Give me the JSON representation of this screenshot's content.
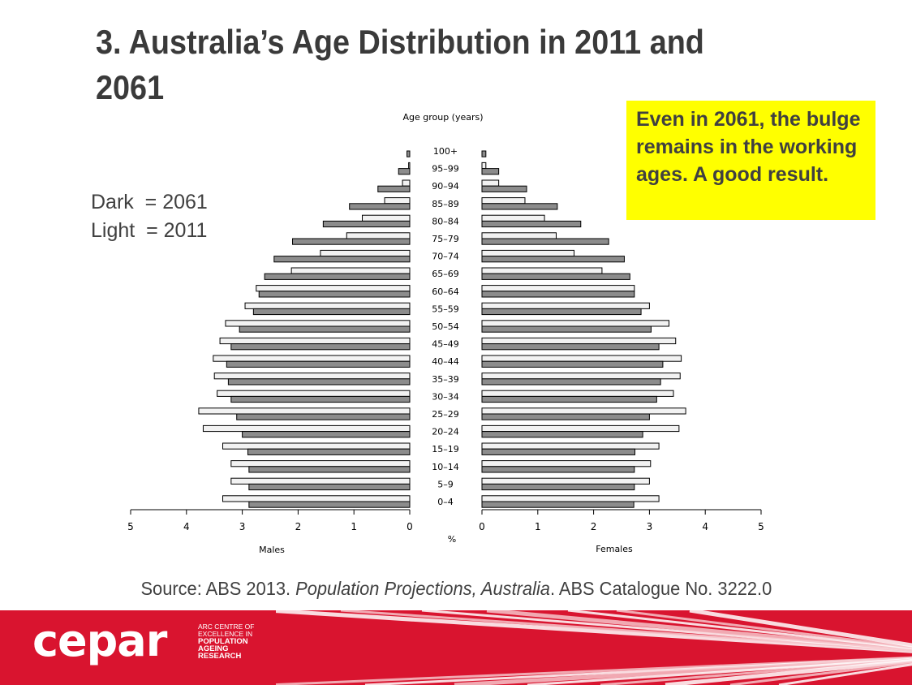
{
  "slide": {
    "title": "3. Australia’s Age Distribution in 2011 and 2061",
    "legend_dark": "Dark  = 2061",
    "legend_light": "Light  = 2011",
    "callout": "Even in 2061, the bulge remains in the working ages. A good result.",
    "source_prefix": "Source: ABS 2013. ",
    "source_title": "Population Projections, Australia",
    "source_suffix": ". ABS Catalogue No. 3222.0"
  },
  "footer": {
    "logo": "cepar",
    "lines": [
      "ARC CENTRE OF",
      "EXCELLENCE IN",
      "POPULATION",
      "AGEING",
      "RESEARCH"
    ],
    "bg_color": "#d9142f"
  },
  "chart_data": {
    "type": "bar",
    "subtype": "population-pyramid",
    "title": "Age group (years)",
    "x_unit_label": "%",
    "left_label": "Males",
    "right_label": "Females",
    "xlim": [
      0,
      5
    ],
    "x_ticks": [
      "5",
      "4",
      "3",
      "2",
      "1",
      "0",
      "0",
      "1",
      "2",
      "3",
      "4",
      "5"
    ],
    "categories": [
      "0–4",
      "5–9",
      "10–14",
      "15–19",
      "20–24",
      "25–29",
      "30–34",
      "35–39",
      "40–44",
      "45–49",
      "50–54",
      "55–59",
      "60–64",
      "65–69",
      "70–74",
      "75–79",
      "80–84",
      "85–89",
      "90–94",
      "95–99",
      "100+"
    ],
    "colors": {
      "2011": "#f2f2f2",
      "2061": "#8c8c8c"
    },
    "series": [
      {
        "name": "Males 2011",
        "side": "left",
        "year": "2011",
        "values": [
          3.35,
          3.2,
          3.2,
          3.35,
          3.7,
          3.78,
          3.45,
          3.5,
          3.52,
          3.4,
          3.3,
          2.95,
          2.75,
          2.12,
          1.6,
          1.13,
          0.85,
          0.45,
          0.13,
          0.02,
          0.0
        ]
      },
      {
        "name": "Males 2061",
        "side": "left",
        "year": "2061",
        "values": [
          2.88,
          2.88,
          2.88,
          2.9,
          3.0,
          3.1,
          3.2,
          3.25,
          3.28,
          3.2,
          3.05,
          2.8,
          2.7,
          2.6,
          2.43,
          2.1,
          1.55,
          1.08,
          0.57,
          0.2,
          0.05
        ]
      },
      {
        "name": "Females 2011",
        "side": "right",
        "year": "2011",
        "values": [
          3.17,
          3.0,
          3.02,
          3.17,
          3.53,
          3.65,
          3.43,
          3.55,
          3.57,
          3.47,
          3.35,
          3.0,
          2.73,
          2.15,
          1.65,
          1.33,
          1.12,
          0.77,
          0.3,
          0.07,
          0.0
        ]
      },
      {
        "name": "Females 2061",
        "side": "right",
        "year": "2061",
        "values": [
          2.72,
          2.73,
          2.73,
          2.74,
          2.88,
          3.0,
          3.13,
          3.2,
          3.24,
          3.17,
          3.03,
          2.85,
          2.73,
          2.65,
          2.55,
          2.27,
          1.77,
          1.35,
          0.8,
          0.3,
          0.07
        ]
      }
    ]
  }
}
